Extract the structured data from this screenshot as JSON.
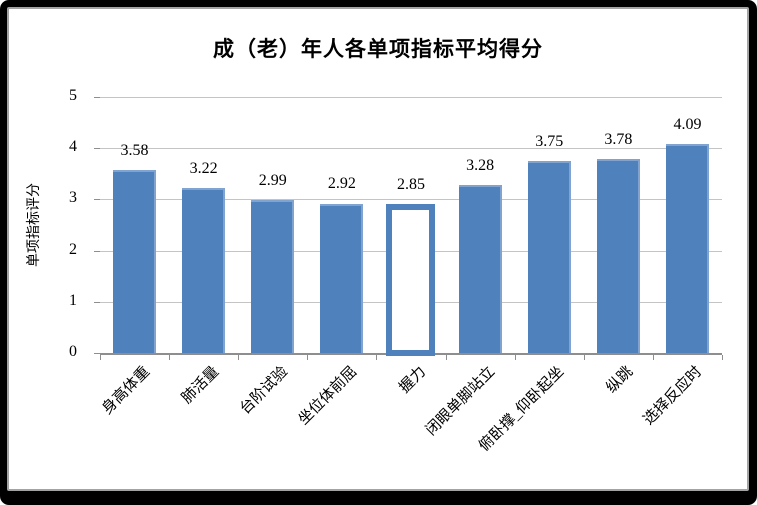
{
  "chart_data": {
    "type": "bar",
    "title": "成（老）年人各单项指标平均得分",
    "ylabel": "单项指标评分",
    "xlabel": "",
    "categories": [
      "身高体重",
      "肺活量",
      "台阶试验",
      "坐位体前屈",
      "握力",
      "闭眼单脚站立",
      "俯卧撑_仰卧起坐",
      "纵跳",
      "选择反应时"
    ],
    "values": [
      3.58,
      3.22,
      2.99,
      2.92,
      2.85,
      3.28,
      3.75,
      3.78,
      4.09
    ],
    "data_labels": [
      "3.58",
      "3.22",
      "2.99",
      "2.92",
      "2.85",
      "3.28",
      "3.75",
      "3.78",
      "4.09"
    ],
    "y_ticks": [
      "0",
      "1",
      "2",
      "3",
      "4",
      "5"
    ],
    "ylim": [
      0,
      5
    ],
    "grid": true,
    "legend": false,
    "highlighted_category": "握力",
    "highlighted_index": 4,
    "colors": {
      "bar_fill": "#4f81bd",
      "bar_highlight_fill": "#ffffff",
      "gridline": "#c4c4c4",
      "axis_line": "#8e8e8e",
      "text": "#000000",
      "frame": "#000000",
      "chart_border": "#a3a3a3",
      "background": "#ffffff"
    }
  }
}
